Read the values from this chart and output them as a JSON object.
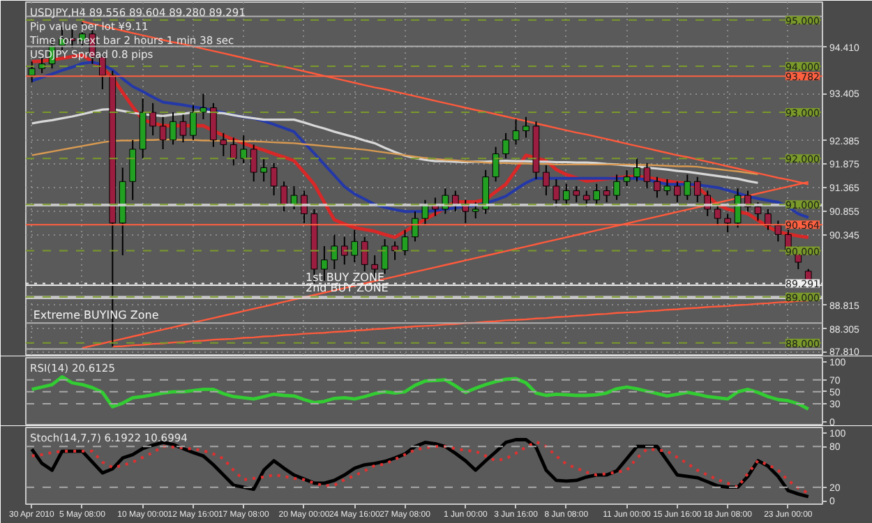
{
  "chart_data": [
    {
      "type": "candlestick",
      "title": "USDJPY,H4 89.556 89.604 89.280 89.291",
      "tick_labels": "y",
      "grid": true,
      "annotations": [
        "Pip value per lot ¥9.11",
        "Time for next bar 2 hours 1 min 38 sec",
        "USDJPY Spread 0.8 pips",
        {
          "text": "1st BUY ZONE",
          "x": "20 May 00:00",
          "y": 89.25
        },
        {
          "text": "2nd BUY ZONE",
          "x": "20 May 00:00",
          "y": 89.02
        },
        {
          "text": "Extreme BUYING Zone",
          "x": "30 Apr 2010",
          "y": 88.43
        }
      ],
      "ylim": [
        87.74,
        95.39
      ],
      "yticks": [
        {
          "value": 94.41,
          "label": "94.410"
        },
        {
          "value": 93.405,
          "label": "93.405"
        },
        {
          "value": 92.385,
          "label": "92.385"
        },
        {
          "value": 91.875,
          "label": "91.875"
        },
        {
          "value": 91.365,
          "label": "91.365"
        },
        {
          "value": 90.855,
          "label": "90.855"
        },
        {
          "value": 90.345,
          "label": "90.345"
        },
        {
          "value": 88.815,
          "label": "88.815"
        },
        {
          "value": 88.305,
          "label": "88.305"
        },
        {
          "value": 87.81,
          "label": "87.810"
        }
      ],
      "categories": [
        "30 Apr 2010",
        null,
        null,
        null,
        null,
        "5 May 08:00",
        null,
        null,
        null,
        null,
        null,
        "10 May 00:00",
        null,
        null,
        null,
        null,
        "12 May 16:00",
        null,
        null,
        null,
        null,
        "17 May 08:00",
        null,
        null,
        null,
        null,
        null,
        "20 May 00:00",
        null,
        null,
        null,
        null,
        "24 May 16:00",
        null,
        null,
        null,
        null,
        "27 May 08:00",
        null,
        null,
        null,
        null,
        null,
        "1 Jun 00:00",
        null,
        null,
        null,
        null,
        "3 Jun 16:00",
        null,
        null,
        null,
        null,
        "8 Jun 08:00",
        null,
        null,
        null,
        null,
        null,
        "11 Jun 00:00",
        null,
        null,
        null,
        null,
        "15 Jun 16:00",
        null,
        null,
        null,
        null,
        "18 Jun 08:00",
        null,
        null,
        null,
        null,
        null,
        "23 Jun 00:00",
        null,
        null
      ],
      "ohlc": [
        [
          93.8,
          94.1,
          93.65,
          93.95
        ],
        [
          93.95,
          94.2,
          93.85,
          94.05
        ],
        [
          94.05,
          94.6,
          93.95,
          94.45
        ],
        [
          94.45,
          94.85,
          94.35,
          94.6
        ],
        [
          94.6,
          94.8,
          94.4,
          94.55
        ],
        [
          94.55,
          94.95,
          94.45,
          94.7
        ],
        [
          94.7,
          94.8,
          94.05,
          94.2
        ],
        [
          94.2,
          94.3,
          93.5,
          93.8
        ],
        [
          93.8,
          93.9,
          87.92,
          90.6
        ],
        [
          90.6,
          91.8,
          89.9,
          91.5
        ],
        [
          91.5,
          92.4,
          91.1,
          92.2
        ],
        [
          92.2,
          93.3,
          92.0,
          93.0
        ],
        [
          93.0,
          93.2,
          92.5,
          92.7
        ],
        [
          92.7,
          92.9,
          92.2,
          92.4
        ],
        [
          92.4,
          93.0,
          92.3,
          92.8
        ],
        [
          92.8,
          92.95,
          92.35,
          92.5
        ],
        [
          92.5,
          93.15,
          92.4,
          93.0
        ],
        [
          93.0,
          93.4,
          92.85,
          93.1
        ],
        [
          93.1,
          93.2,
          92.25,
          92.4
        ],
        [
          92.4,
          92.55,
          92.05,
          92.3
        ],
        [
          92.3,
          92.45,
          91.85,
          92.0
        ],
        [
          92.0,
          92.5,
          91.9,
          92.2
        ],
        [
          92.2,
          92.3,
          91.5,
          91.7
        ],
        [
          91.7,
          92.0,
          91.5,
          91.8
        ],
        [
          91.8,
          91.9,
          91.2,
          91.4
        ],
        [
          91.4,
          91.5,
          90.85,
          91.0
        ],
        [
          91.0,
          91.4,
          90.9,
          91.2
        ],
        [
          91.2,
          91.3,
          90.6,
          90.8
        ],
        [
          90.8,
          90.9,
          89.3,
          89.6
        ],
        [
          89.6,
          90.1,
          89.35,
          89.8
        ],
        [
          89.8,
          90.35,
          89.6,
          90.1
        ],
        [
          90.1,
          90.3,
          89.7,
          89.9
        ],
        [
          89.9,
          90.45,
          89.75,
          90.2
        ],
        [
          90.2,
          90.3,
          89.55,
          89.7
        ],
        [
          89.7,
          89.9,
          89.4,
          89.6
        ],
        [
          89.6,
          90.25,
          89.5,
          90.1
        ],
        [
          90.1,
          90.2,
          89.8,
          90.0
        ],
        [
          90.0,
          90.45,
          89.9,
          90.3
        ],
        [
          90.3,
          90.85,
          90.2,
          90.7
        ],
        [
          90.7,
          91.1,
          90.55,
          91.0
        ],
        [
          91.0,
          91.15,
          90.75,
          90.9
        ],
        [
          90.9,
          91.35,
          90.8,
          91.2
        ],
        [
          91.2,
          91.3,
          90.85,
          91.0
        ],
        [
          91.0,
          91.1,
          90.6,
          90.85
        ],
        [
          90.85,
          91.05,
          90.7,
          90.9
        ],
        [
          90.9,
          91.75,
          90.8,
          91.6
        ],
        [
          91.6,
          92.25,
          91.5,
          92.1
        ],
        [
          92.1,
          92.55,
          92.0,
          92.4
        ],
        [
          92.4,
          92.85,
          92.3,
          92.6
        ],
        [
          92.6,
          92.9,
          92.45,
          92.7
        ],
        [
          92.7,
          92.8,
          91.55,
          91.7
        ],
        [
          91.7,
          91.85,
          91.2,
          91.4
        ],
        [
          91.4,
          91.55,
          90.95,
          91.1
        ],
        [
          91.1,
          91.45,
          91.0,
          91.3
        ],
        [
          91.3,
          91.4,
          91.05,
          91.2
        ],
        [
          91.2,
          91.3,
          90.95,
          91.1
        ],
        [
          91.1,
          91.45,
          91.0,
          91.3
        ],
        [
          91.3,
          91.4,
          91.05,
          91.2
        ],
        [
          91.2,
          91.65,
          91.1,
          91.5
        ],
        [
          91.5,
          91.75,
          91.4,
          91.6
        ],
        [
          91.6,
          92.0,
          91.5,
          91.8
        ],
        [
          91.8,
          91.9,
          91.35,
          91.5
        ],
        [
          91.5,
          91.6,
          91.15,
          91.3
        ],
        [
          91.3,
          91.55,
          91.2,
          91.4
        ],
        [
          91.4,
          91.5,
          91.05,
          91.2
        ],
        [
          91.2,
          91.65,
          91.1,
          91.5
        ],
        [
          91.5,
          91.6,
          91.05,
          91.2
        ],
        [
          91.2,
          91.3,
          90.75,
          90.9
        ],
        [
          90.9,
          91.0,
          90.55,
          90.7
        ],
        [
          90.7,
          90.8,
          90.4,
          90.6
        ],
        [
          90.6,
          91.35,
          90.5,
          91.2
        ],
        [
          91.2,
          91.3,
          90.85,
          90.95
        ],
        [
          90.95,
          91.05,
          90.65,
          90.8
        ],
        [
          90.8,
          90.9,
          90.45,
          90.55
        ],
        [
          90.55,
          90.65,
          90.2,
          90.35
        ],
        [
          90.35,
          90.45,
          89.9,
          90.0
        ],
        [
          90.0,
          90.1,
          89.6,
          89.75
        ],
        [
          89.556,
          89.604,
          89.28,
          89.291
        ]
      ],
      "series": [
        {
          "type": "line",
          "color": "#d82828",
          "values": [
            94.1,
            94.11,
            94.14,
            94.17,
            94.21,
            94.24,
            94.1,
            93.96,
            93.75,
            93.43,
            93.12,
            92.84,
            92.77,
            92.71,
            92.71,
            92.71,
            92.71,
            92.71,
            92.6,
            92.5,
            92.41,
            92.33,
            92.25,
            92.18,
            92.1,
            92.03,
            91.95,
            91.7,
            91.44,
            91.05,
            90.67,
            90.58,
            90.5,
            90.46,
            90.42,
            90.35,
            90.29,
            90.42,
            90.55,
            90.68,
            90.8,
            90.93,
            91.06,
            91.06,
            91.06,
            91.11,
            91.28,
            91.44,
            91.75,
            92.07,
            92.01,
            91.95,
            91.76,
            91.65,
            91.58,
            91.51,
            91.53,
            91.56,
            91.58,
            91.6,
            91.61,
            91.59,
            91.55,
            91.51,
            91.48,
            91.46,
            91.38,
            91.19,
            91.0,
            90.9,
            90.85,
            90.8,
            90.66,
            90.52,
            90.41,
            90.36,
            90.32,
            90.29
          ]
        },
        {
          "type": "line",
          "color": "#2438a8",
          "values": [
            93.68,
            93.76,
            93.83,
            93.91,
            93.98,
            94.06,
            94.09,
            94.03,
            93.92,
            93.73,
            93.56,
            93.45,
            93.33,
            93.22,
            93.19,
            93.16,
            93.12,
            93.09,
            93.04,
            92.99,
            92.94,
            92.9,
            92.87,
            92.81,
            92.74,
            92.66,
            92.58,
            92.34,
            92.11,
            91.87,
            91.63,
            91.39,
            91.23,
            91.12,
            91.0,
            90.94,
            90.89,
            90.85,
            90.85,
            90.85,
            90.87,
            90.9,
            90.93,
            90.96,
            90.98,
            91.03,
            91.1,
            91.18,
            91.33,
            91.47,
            91.57,
            91.57,
            91.57,
            91.57,
            91.57,
            91.57,
            91.57,
            91.57,
            91.57,
            91.57,
            91.57,
            91.54,
            91.49,
            91.44,
            91.44,
            91.44,
            91.43,
            91.4,
            91.37,
            91.31,
            91.25,
            91.18,
            91.13,
            91.09,
            91.05,
            90.95,
            90.8,
            90.72
          ]
        },
        {
          "type": "line",
          "color": "#d8d8d8",
          "values": [
            92.76,
            92.8,
            92.83,
            92.87,
            92.91,
            92.96,
            93.01,
            93.06,
            93.07,
            93.03,
            92.99,
            92.96,
            92.94,
            92.92,
            92.95,
            92.97,
            93.0,
            93.02,
            93.0,
            92.98,
            92.94,
            92.9,
            92.87,
            92.84,
            92.84,
            92.84,
            92.84,
            92.78,
            92.71,
            92.65,
            92.58,
            92.52,
            92.46,
            92.39,
            92.33,
            92.23,
            92.14,
            92.06,
            92.01,
            91.97,
            91.94,
            91.94,
            91.93,
            91.92,
            91.93,
            91.93,
            91.94,
            91.95,
            91.94,
            91.94,
            91.93,
            91.93,
            91.92,
            91.92,
            91.91,
            91.91,
            91.9,
            91.88,
            91.87,
            91.85,
            91.83,
            91.8,
            91.78,
            91.76,
            91.73,
            91.71,
            91.68,
            91.65,
            91.62,
            91.59,
            91.56,
            91.51,
            91.47,
            null,
            null,
            null,
            null,
            null
          ]
        },
        {
          "type": "line",
          "color": "#d99a52",
          "values": [
            92.07,
            92.11,
            92.15,
            92.19,
            92.23,
            92.27,
            92.31,
            92.35,
            92.38,
            92.39,
            92.39,
            92.4,
            92.4,
            92.41,
            92.41,
            92.4,
            92.4,
            92.39,
            92.39,
            92.38,
            92.38,
            92.37,
            92.37,
            92.36,
            92.35,
            92.34,
            92.33,
            92.31,
            92.29,
            92.27,
            92.25,
            92.23,
            92.21,
            92.19,
            92.16,
            92.13,
            92.1,
            92.07,
            92.04,
            92.01,
            91.99,
            91.97,
            91.96,
            91.94,
            91.93,
            91.91,
            91.9,
            91.9,
            91.89,
            91.89,
            91.88,
            91.88,
            91.87,
            91.87,
            91.87,
            91.87,
            91.87,
            91.87,
            91.87,
            91.87,
            91.86,
            91.86,
            91.85,
            91.84,
            91.83,
            91.83,
            91.82,
            91.79,
            91.77,
            91.74,
            91.72,
            91.69,
            91.66,
            null,
            null,
            null,
            null,
            null
          ]
        },
        {
          "type": "line",
          "color": "#ff5a3c",
          "values": [
            null,
            null,
            null,
            null,
            null,
            94.97,
            94.92,
            94.87,
            94.82,
            94.77,
            94.72,
            94.67,
            94.62,
            94.57,
            94.52,
            94.48,
            94.43,
            94.38,
            94.33,
            94.28,
            94.23,
            94.18,
            94.13,
            94.08,
            94.03,
            93.99,
            93.94,
            93.89,
            93.84,
            93.79,
            93.74,
            93.69,
            93.64,
            93.59,
            93.54,
            93.5,
            93.45,
            93.4,
            93.35,
            93.3,
            93.25,
            93.2,
            93.15,
            93.1,
            93.05,
            93.01,
            92.96,
            92.91,
            92.86,
            92.81,
            92.76,
            92.71,
            92.66,
            92.61,
            92.56,
            92.52,
            92.47,
            92.42,
            92.37,
            92.32,
            92.27,
            92.22,
            92.17,
            92.12,
            92.07,
            92.03,
            91.98,
            91.93,
            91.88,
            91.83,
            91.78,
            91.73,
            91.68,
            91.63,
            91.58,
            91.54,
            91.49,
            91.44
          ]
        },
        {
          "type": "line",
          "color": "#ff5a3c",
          "values": [
            null,
            null,
            null,
            null,
            null,
            87.89,
            87.94,
            87.99,
            88.04,
            88.09,
            88.14,
            88.19,
            88.24,
            88.29,
            88.34,
            88.39,
            88.44,
            88.49,
            88.54,
            88.59,
            88.64,
            88.69,
            88.74,
            88.79,
            88.84,
            88.89,
            88.94,
            88.99,
            89.04,
            89.09,
            89.14,
            89.19,
            89.24,
            89.29,
            89.34,
            89.39,
            89.44,
            89.49,
            89.54,
            89.59,
            89.64,
            89.69,
            89.74,
            89.79,
            89.84,
            89.89,
            89.94,
            89.99,
            90.04,
            90.09,
            90.14,
            90.19,
            90.24,
            90.29,
            90.34,
            90.39,
            90.44,
            90.49,
            90.54,
            90.59,
            90.64,
            90.69,
            90.74,
            90.79,
            90.84,
            90.89,
            90.94,
            90.99,
            91.04,
            91.09,
            91.14,
            91.19,
            91.24,
            91.29,
            91.34,
            91.39,
            91.44,
            91.49
          ]
        },
        {
          "type": "line",
          "color": "#ff5a3c",
          "values": [
            null,
            null,
            null,
            null,
            null,
            null,
            null,
            null,
            87.92,
            87.93,
            87.95,
            87.96,
            87.98,
            87.99,
            88.01,
            88.02,
            88.04,
            88.05,
            88.07,
            88.08,
            88.09,
            88.11,
            88.12,
            88.14,
            88.15,
            88.17,
            88.18,
            88.2,
            88.21,
            88.22,
            88.24,
            88.25,
            88.27,
            88.28,
            88.3,
            88.31,
            88.33,
            88.34,
            88.36,
            88.37,
            88.38,
            88.4,
            88.41,
            88.43,
            88.44,
            88.46,
            88.47,
            88.49,
            88.5,
            88.51,
            88.53,
            88.54,
            88.56,
            88.57,
            88.59,
            88.6,
            88.62,
            88.63,
            88.65,
            88.66,
            88.67,
            88.69,
            88.7,
            88.72,
            88.73,
            88.75,
            88.76,
            88.78,
            88.79,
            88.8,
            88.82,
            88.83,
            88.85,
            88.86,
            88.88,
            88.89,
            88.91,
            88.92
          ]
        }
      ],
      "bands": [
        {
          "axis": "y",
          "from": 90.96,
          "to": 91.02,
          "color": "#d8d8d8"
        },
        {
          "axis": "y",
          "from": 88.95,
          "to": 89.02,
          "color": "#d8d8d8"
        }
      ],
      "ref_lines": [
        {
          "axis": "y",
          "value": 95.08,
          "color": "#b0b0b0"
        },
        {
          "axis": "y",
          "value": 94.43,
          "color": "#b0b0b0"
        },
        {
          "axis": "y",
          "value": 89.25,
          "color": "#e8e8e8"
        },
        {
          "axis": "y",
          "value": 88.43,
          "color": "#b0b0b0"
        },
        {
          "axis": "y",
          "value": 87.87,
          "color": "#b0b0b0"
        },
        {
          "axis": "y",
          "value": 95.0,
          "label": "95.000",
          "color": "#7a9a2a",
          "line_style": "dashed"
        },
        {
          "axis": "y",
          "value": 94.0,
          "label": "94.000",
          "color": "#7a9a2a",
          "line_style": "dashed"
        },
        {
          "axis": "y",
          "value": 93.0,
          "label": "93.000",
          "color": "#7a9a2a",
          "line_style": "dashed"
        },
        {
          "axis": "y",
          "value": 92.0,
          "label": "92.000",
          "color": "#7a9a2a",
          "line_style": "dashed"
        },
        {
          "axis": "y",
          "value": 91.0,
          "label": "91.000",
          "color": "#7a9a2a",
          "line_style": "dashed"
        },
        {
          "axis": "y",
          "value": 90.0,
          "label": "90.000",
          "color": "#7a9a2a",
          "line_style": "dashed"
        },
        {
          "axis": "y",
          "value": 89.0,
          "label": "89.000",
          "color": "#7a9a2a",
          "line_style": "dashed"
        },
        {
          "axis": "y",
          "value": 88.0,
          "label": "88.000",
          "color": "#7a9a2a",
          "line_style": "dashed"
        },
        {
          "axis": "y",
          "value": 93.782,
          "label": "93.782",
          "color": "#ff6040"
        },
        {
          "axis": "y",
          "value": 90.564,
          "label": "90.564",
          "color": "#ff6040"
        },
        {
          "axis": "y",
          "value": 89.291,
          "label": "89.291",
          "color": "#f0f0f0",
          "line_style": "dotted"
        }
      ]
    },
    {
      "type": "line",
      "title": "RSI(14) 20.6125",
      "tick_labels": "y",
      "ylim": [
        -5,
        107
      ],
      "categories": [
        "30 Apr 2010",
        null,
        null,
        null,
        null,
        "5 May 08:00",
        null,
        null,
        null,
        null,
        null,
        "10 May 00:00",
        null,
        null,
        null,
        null,
        "12 May 16:00",
        null,
        null,
        null,
        null,
        "17 May 08:00",
        null,
        null,
        null,
        null,
        null,
        "20 May 00:00",
        null,
        null,
        null,
        null,
        "24 May 16:00",
        null,
        null,
        null,
        null,
        "27 May 08:00",
        null,
        null,
        null,
        null,
        null,
        "1 Jun 00:00",
        null,
        null,
        null,
        null,
        "3 Jun 16:00",
        null,
        null,
        null,
        null,
        "8 Jun 08:00",
        null,
        null,
        null,
        null,
        null,
        "11 Jun 00:00",
        null,
        null,
        null,
        null,
        "15 Jun 16:00",
        null,
        null,
        null,
        null,
        "18 Jun 08:00",
        null,
        null,
        null,
        null,
        null,
        "23 Jun 00:00",
        null,
        null
      ],
      "yticks": [
        0,
        30,
        50,
        70,
        100
      ],
      "ref_lines": [
        {
          "axis": "y",
          "value": 70,
          "color": "#a8a8a8",
          "line_style": "dashed"
        },
        {
          "axis": "y",
          "value": 50,
          "color": "#a8a8a8",
          "line_style": "dashed"
        },
        {
          "axis": "y",
          "value": 30,
          "color": "#a8a8a8",
          "line_style": "dashed"
        }
      ],
      "series": [
        {
          "color": "#33cc33",
          "values": [
            54,
            58,
            62,
            75,
            65,
            62,
            57,
            49,
            25,
            31,
            40,
            42,
            45,
            48,
            50,
            50,
            52,
            54,
            54,
            47,
            42,
            40,
            38,
            42,
            46,
            44,
            43,
            37,
            32,
            34,
            39,
            40,
            38,
            42,
            47,
            50,
            48,
            50,
            61,
            68,
            69,
            70,
            60,
            49,
            56,
            62,
            67,
            71,
            72,
            65,
            48,
            44,
            46,
            45,
            44,
            44,
            45,
            48,
            55,
            58,
            55,
            51,
            47,
            43,
            46,
            49,
            46,
            42,
            40,
            38,
            50,
            54,
            49,
            42,
            37,
            35,
            30,
            21
          ]
        }
      ]
    },
    {
      "type": "line",
      "title": "Stoch(14,7,7) 6.1922 10.6994",
      "ylim": [
        -5,
        108
      ],
      "categories": [
        "30 Apr 2010",
        null,
        null,
        null,
        null,
        "5 May 08:00",
        null,
        null,
        null,
        null,
        null,
        "10 May 00:00",
        null,
        null,
        null,
        null,
        "12 May 16:00",
        null,
        null,
        null,
        null,
        "17 May 08:00",
        null,
        null,
        null,
        null,
        null,
        "20 May 00:00",
        null,
        null,
        null,
        null,
        "24 May 16:00",
        null,
        null,
        null,
        null,
        "27 May 08:00",
        null,
        null,
        null,
        null,
        null,
        "1 Jun 00:00",
        null,
        null,
        null,
        null,
        "3 Jun 16:00",
        null,
        null,
        null,
        null,
        "8 Jun 08:00",
        null,
        null,
        null,
        null,
        null,
        "11 Jun 00:00",
        null,
        null,
        null,
        null,
        "15 Jun 16:00",
        null,
        null,
        null,
        null,
        "18 Jun 08:00",
        null,
        null,
        null,
        null,
        null,
        "23 Jun 00:00",
        null,
        null
      ],
      "yticks": [
        0,
        20,
        80,
        100
      ],
      "ref_lines": [
        {
          "axis": "y",
          "value": 80,
          "color": "#a8a8a8",
          "line_style": "dashed"
        },
        {
          "axis": "y",
          "value": 20,
          "color": "#a8a8a8",
          "line_style": "dashed"
        }
      ],
      "series": [
        {
          "color": "#000000",
          "values": [
            76,
            55,
            45,
            73,
            73,
            73,
            57,
            41,
            47,
            63,
            68,
            77,
            82,
            86,
            83,
            77,
            71,
            66,
            53,
            38,
            23,
            20,
            17,
            45,
            59,
            48,
            38,
            32,
            26,
            26,
            30,
            38,
            48,
            53,
            55,
            58,
            63,
            69,
            80,
            86,
            84,
            80,
            70,
            59,
            45,
            59,
            72,
            86,
            90,
            90,
            79,
            45,
            30,
            29,
            30,
            35,
            38,
            38,
            44,
            62,
            80,
            80,
            80,
            59,
            38,
            36,
            34,
            28,
            22,
            20,
            20,
            36,
            59,
            51,
            36,
            15,
            10,
            6
          ]
        },
        {
          "color": "#e03030",
          "line_style": "dotted",
          "values": [
            66,
            68,
            71,
            73,
            73,
            73,
            73,
            57,
            49,
            52,
            57,
            64,
            71,
            80,
            79,
            78,
            76,
            74,
            69,
            62,
            45,
            31,
            33,
            35,
            38,
            36,
            33,
            31,
            26,
            22,
            23,
            31,
            37,
            44,
            52,
            54,
            61,
            68,
            75,
            78,
            80,
            80,
            77,
            74,
            73,
            66,
            59,
            62,
            70,
            79,
            87,
            80,
            66,
            54,
            48,
            42,
            38,
            40,
            42,
            45,
            63,
            76,
            75,
            73,
            64,
            55,
            45,
            38,
            31,
            26,
            20,
            40,
            59,
            53,
            45,
            30,
            19,
            11
          ]
        }
      ]
    }
  ]
}
